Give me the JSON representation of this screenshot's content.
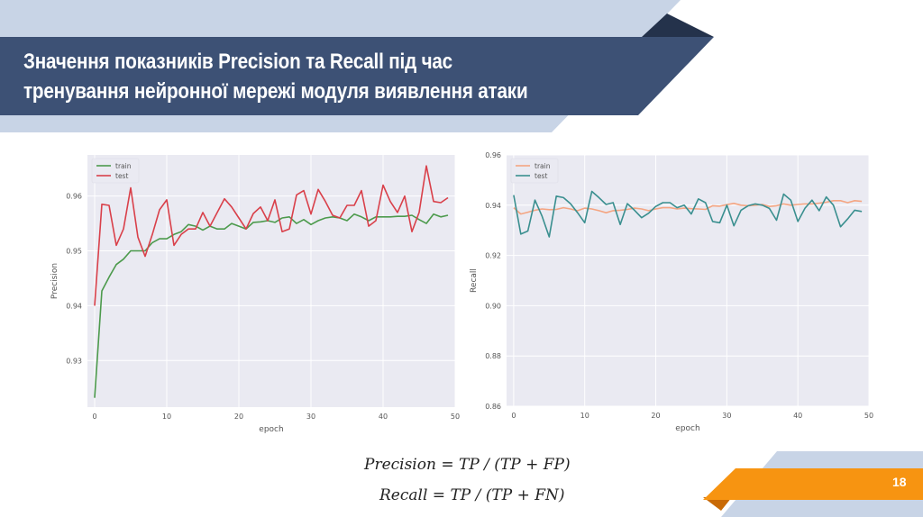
{
  "slide": {
    "title_lines": [
      "Значення показників Precision та Recall  під час",
      "тренування нейронної мережі модуля виявлення атаки"
    ],
    "page_number": "18",
    "colors": {
      "header_light": "#c8d4e6",
      "header_dark": "#3d5175",
      "header_shadow": "#24324b",
      "footer_orange": "#f79411",
      "footer_orange_dark": "#c96a06",
      "footer_light": "#c8d4e6",
      "plot_bg": "#eaeaf2"
    },
    "formulas": {
      "precision": "Precision = TP / (TP + FP)",
      "recall": "Recall = TP / (TP + FN)"
    }
  },
  "chart_data": [
    {
      "type": "line",
      "title": "",
      "xlabel": "epoch",
      "ylabel": "Precision",
      "xlim": [
        -1,
        50
      ],
      "ylim": [
        0.9215,
        0.9675
      ],
      "xticks": [
        0,
        10,
        20,
        30,
        40,
        50
      ],
      "yticks": [
        0.93,
        0.94,
        0.95,
        0.96
      ],
      "ytick_labels": [
        "0.93",
        "0.94",
        "0.95",
        "0.96"
      ],
      "grid": true,
      "legend_position": "upper left",
      "x": [
        0,
        1,
        2,
        3,
        4,
        5,
        6,
        7,
        8,
        9,
        10,
        11,
        12,
        13,
        14,
        15,
        16,
        17,
        18,
        19,
        20,
        21,
        22,
        23,
        24,
        25,
        26,
        27,
        28,
        29,
        30,
        31,
        32,
        33,
        34,
        35,
        36,
        37,
        38,
        39,
        40,
        41,
        42,
        43,
        44,
        45,
        46,
        47,
        48,
        49
      ],
      "series": [
        {
          "name": "train",
          "color": "#4c9a4c",
          "values": [
            0.9232,
            0.9427,
            0.9452,
            0.9475,
            0.9485,
            0.95,
            0.95,
            0.95,
            0.9515,
            0.9522,
            0.9522,
            0.953,
            0.9535,
            0.9548,
            0.9545,
            0.9538,
            0.9545,
            0.954,
            0.954,
            0.955,
            0.9545,
            0.954,
            0.9552,
            0.9553,
            0.9555,
            0.9552,
            0.956,
            0.9562,
            0.955,
            0.9557,
            0.9548,
            0.9555,
            0.956,
            0.9562,
            0.956,
            0.9555,
            0.9567,
            0.9562,
            0.9555,
            0.9562,
            0.9562,
            0.9562,
            0.9563,
            0.9563,
            0.9565,
            0.9557,
            0.955,
            0.9567,
            0.9562,
            0.9565
          ]
        },
        {
          "name": "test",
          "color": "#d9404a",
          "values": [
            0.94,
            0.9585,
            0.9583,
            0.951,
            0.954,
            0.9615,
            0.9525,
            0.949,
            0.953,
            0.9575,
            0.9593,
            0.951,
            0.953,
            0.954,
            0.954,
            0.957,
            0.9545,
            0.957,
            0.9595,
            0.958,
            0.956,
            0.954,
            0.9568,
            0.958,
            0.9555,
            0.9593,
            0.9535,
            0.954,
            0.9602,
            0.961,
            0.9567,
            0.9612,
            0.959,
            0.9565,
            0.956,
            0.9583,
            0.9583,
            0.961,
            0.9545,
            0.9555,
            0.962,
            0.959,
            0.957,
            0.96,
            0.9535,
            0.957,
            0.9655,
            0.959,
            0.9588,
            0.9597
          ]
        }
      ]
    },
    {
      "type": "line",
      "title": "",
      "xlabel": "epoch",
      "ylabel": "Recall",
      "xlim": [
        -1,
        50
      ],
      "ylim": [
        0.86,
        0.96
      ],
      "xticks": [
        0,
        10,
        20,
        30,
        40,
        50
      ],
      "yticks": [
        0.86,
        0.88,
        0.9,
        0.92,
        0.94,
        0.96
      ],
      "ytick_labels": [
        "0.86",
        "0.88",
        "0.90",
        "0.92",
        "0.94",
        "0.96"
      ],
      "grid": true,
      "legend_position": "upper left",
      "x": [
        0,
        1,
        2,
        3,
        4,
        5,
        6,
        7,
        8,
        9,
        10,
        11,
        12,
        13,
        14,
        15,
        16,
        17,
        18,
        19,
        20,
        21,
        22,
        23,
        24,
        25,
        26,
        27,
        28,
        29,
        30,
        31,
        32,
        33,
        34,
        35,
        36,
        37,
        38,
        39,
        40,
        41,
        42,
        43,
        44,
        45,
        46,
        47,
        48,
        49
      ],
      "series": [
        {
          "name": "train",
          "color": "#f4a582",
          "values": [
            0.939,
            0.9365,
            0.9372,
            0.938,
            0.9385,
            0.9382,
            0.9383,
            0.939,
            0.9385,
            0.9378,
            0.9388,
            0.9385,
            0.9378,
            0.937,
            0.9378,
            0.938,
            0.9383,
            0.9388,
            0.9385,
            0.9378,
            0.9385,
            0.939,
            0.939,
            0.9385,
            0.9388,
            0.9386,
            0.9385,
            0.9383,
            0.9398,
            0.9396,
            0.9402,
            0.9407,
            0.94,
            0.9398,
            0.94,
            0.9403,
            0.9395,
            0.9398,
            0.9405,
            0.94,
            0.9403,
            0.9405,
            0.9405,
            0.9408,
            0.9412,
            0.9418,
            0.9418,
            0.941,
            0.9418,
            0.9415
          ]
        },
        {
          "name": "test",
          "color": "#3a8f8f",
          "values": [
            0.944,
            0.9285,
            0.9297,
            0.942,
            0.9356,
            0.9274,
            0.9436,
            0.943,
            0.9406,
            0.937,
            0.933,
            0.9455,
            0.943,
            0.9403,
            0.941,
            0.9323,
            0.9406,
            0.938,
            0.935,
            0.9368,
            0.9395,
            0.941,
            0.941,
            0.939,
            0.94,
            0.9365,
            0.9425,
            0.941,
            0.9335,
            0.933,
            0.94,
            0.9318,
            0.938,
            0.9398,
            0.9405,
            0.94,
            0.9387,
            0.934,
            0.9444,
            0.942,
            0.9335,
            0.9388,
            0.942,
            0.9378,
            0.9433,
            0.94,
            0.9314,
            0.9345,
            0.938,
            0.9375
          ]
        }
      ]
    }
  ]
}
